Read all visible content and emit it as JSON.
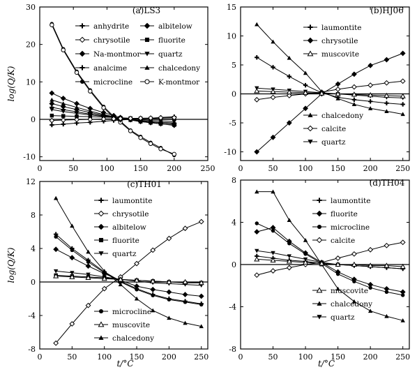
{
  "chart_data": [
    {
      "type": "line",
      "title": "(a)LS3",
      "xlabel": "",
      "ylabel": "log(Q/K)",
      "xlim": [
        0,
        250
      ],
      "ylim": [
        -11,
        30
      ],
      "xticks": [
        0,
        50,
        100,
        150,
        200,
        250
      ],
      "yticks": [
        -10,
        0,
        10,
        20,
        30
      ],
      "hline_y": 0,
      "legend": {
        "position": "top-right",
        "entries": [
          {
            "label": "anhydrite",
            "marker": "plus"
          },
          {
            "label": "albitelow",
            "marker": "diamond-filled"
          },
          {
            "label": "chrysotile",
            "marker": "diamond-open"
          },
          {
            "label": "fluorite",
            "marker": "square-filled"
          },
          {
            "label": "Na-montmor",
            "marker": "diamond-filled"
          },
          {
            "label": "quartz",
            "marker": "triangle-down"
          },
          {
            "label": "analcime",
            "marker": "plus"
          },
          {
            "label": "chalcedony",
            "marker": "triangle-up-filled"
          },
          {
            "label": "microcline",
            "marker": "circle-filled"
          },
          {
            "label": "K-montmor",
            "marker": "circle-open"
          }
        ]
      },
      "series": [
        {
          "x": [
            18,
            35,
            55,
            75,
            95,
            110,
            120,
            135,
            150,
            165,
            180,
            200
          ],
          "y": [
            25.5,
            18.8,
            12.8,
            7.8,
            3.4,
            0.8,
            -0.5,
            -2.9,
            -4.6,
            -6.2,
            -7.6,
            -9.6
          ],
          "marker": "circle-filled"
        },
        {
          "x": [
            18,
            35,
            55,
            75,
            95,
            110,
            120,
            135,
            150,
            165,
            180,
            200
          ],
          "y": [
            25.2,
            18.5,
            12.5,
            7.5,
            3.1,
            0.5,
            -0.8,
            -3.1,
            -4.9,
            -6.5,
            -7.9,
            -9.3
          ],
          "marker": "circle-open"
        },
        {
          "x": [
            18,
            35,
            55,
            75,
            95,
            110,
            120,
            135,
            150,
            165,
            180,
            200
          ],
          "y": [
            7.0,
            5.6,
            4.2,
            2.9,
            1.8,
            1.0,
            0.5,
            -0.1,
            -0.6,
            -0.9,
            -1.2,
            -1.6
          ],
          "marker": "diamond-filled"
        },
        {
          "x": [
            18,
            35,
            55,
            75,
            95,
            110,
            120,
            135,
            150,
            165,
            180,
            200
          ],
          "y": [
            5.2,
            4.2,
            3.2,
            2.2,
            1.3,
            0.7,
            0.3,
            -0.2,
            -0.6,
            -0.9,
            -1.2,
            -1.5
          ],
          "marker": "triangle-up-filled"
        },
        {
          "x": [
            18,
            35,
            55,
            75,
            95,
            110,
            120,
            135,
            150,
            165,
            180,
            200
          ],
          "y": [
            4.2,
            3.4,
            2.6,
            1.8,
            1.1,
            0.6,
            0.3,
            -0.1,
            -0.4,
            -0.7,
            -0.9,
            -1.2
          ],
          "marker": "diamond-filled"
        },
        {
          "x": [
            18,
            35,
            55,
            75,
            95,
            110,
            120,
            135,
            150,
            165,
            180,
            200
          ],
          "y": [
            3.2,
            2.6,
            2.0,
            1.4,
            0.9,
            0.5,
            0.2,
            -0.1,
            -0.3,
            -0.6,
            -0.8,
            -1.0
          ],
          "marker": "plus"
        },
        {
          "x": [
            18,
            35,
            55,
            75,
            95,
            110,
            120,
            135,
            150,
            165,
            180,
            200
          ],
          "y": [
            2.6,
            2.1,
            1.6,
            1.2,
            0.8,
            0.5,
            0.3,
            0.1,
            -0.1,
            -0.3,
            -0.4,
            -0.6
          ],
          "marker": "triangle-down"
        },
        {
          "x": [
            18,
            35,
            55,
            75,
            95,
            110,
            120,
            135,
            150,
            165,
            180,
            200
          ],
          "y": [
            1.0,
            0.9,
            0.8,
            0.7,
            0.6,
            0.5,
            0.4,
            0.3,
            0.25,
            0.2,
            0.15,
            0.1
          ],
          "marker": "square-filled"
        },
        {
          "x": [
            18,
            35,
            55,
            75,
            95,
            110,
            120,
            135,
            150,
            165,
            180,
            200
          ],
          "y": [
            -1.5,
            -1.3,
            -1.0,
            -0.8,
            -0.5,
            -0.3,
            -0.2,
            0.0,
            0.2,
            0.3,
            0.5,
            0.7
          ],
          "marker": "plus"
        },
        {
          "x": [
            18,
            35,
            55,
            75,
            95,
            110,
            120,
            135,
            150,
            165,
            180,
            200
          ],
          "y": [
            -0.3,
            -0.2,
            -0.1,
            0.0,
            0.1,
            0.15,
            0.2,
            0.25,
            0.3,
            0.35,
            0.4,
            0.45
          ],
          "marker": "diamond-open"
        }
      ]
    },
    {
      "type": "line",
      "title": "(b)HJ06",
      "xlabel": "",
      "ylabel": "",
      "xlim": [
        0,
        260
      ],
      "ylim": [
        -11.5,
        15
      ],
      "xticks": [
        0,
        50,
        100,
        150,
        200,
        250
      ],
      "yticks": [
        -10,
        -5,
        0,
        5,
        10,
        15
      ],
      "hline_y": 0,
      "legend": {
        "position": "right",
        "entries": [
          {
            "label": "laumontite",
            "marker": "plus"
          },
          {
            "label": "chrysotile",
            "marker": "diamond-filled"
          },
          {
            "label": "muscovite",
            "marker": "triangle-up-open"
          },
          {
            "label": "chalcedony",
            "marker": "triangle-up-filled"
          },
          {
            "label": "calcite",
            "marker": "diamond-open"
          },
          {
            "label": "quartz",
            "marker": "triangle-down"
          }
        ]
      },
      "series": [
        {
          "x": [
            25,
            50,
            75,
            100,
            125,
            150,
            175,
            200,
            225,
            250
          ],
          "y": [
            -10.0,
            -7.5,
            -5.0,
            -2.5,
            0.0,
            1.7,
            3.4,
            4.9,
            5.9,
            7.0
          ],
          "marker": "diamond-filled"
        },
        {
          "x": [
            25,
            50,
            75,
            100,
            125,
            150,
            175,
            200,
            225,
            250
          ],
          "y": [
            12.0,
            9.0,
            6.2,
            3.6,
            0.4,
            -0.8,
            -1.8,
            -2.5,
            -3.0,
            -3.5
          ],
          "marker": "triangle-up-filled"
        },
        {
          "x": [
            25,
            50,
            75,
            100,
            125,
            150,
            175,
            200,
            225,
            250
          ],
          "y": [
            6.3,
            4.6,
            3.0,
            1.5,
            0.2,
            -0.6,
            -1.0,
            -1.3,
            -1.6,
            -1.8
          ],
          "marker": "plus"
        },
        {
          "x": [
            25,
            50,
            75,
            100,
            125,
            150,
            175,
            200,
            225,
            250
          ],
          "y": [
            -1.0,
            -0.6,
            -0.3,
            0.0,
            0.3,
            0.8,
            1.2,
            1.5,
            1.9,
            2.2
          ],
          "marker": "diamond-open"
        },
        {
          "x": [
            25,
            50,
            75,
            100,
            125,
            150,
            175,
            200,
            225,
            250
          ],
          "y": [
            1.0,
            0.8,
            0.6,
            0.4,
            0.2,
            0.0,
            -0.2,
            -0.4,
            -0.6,
            -0.7
          ],
          "marker": "triangle-down"
        },
        {
          "x": [
            25,
            50,
            75,
            100,
            125,
            150,
            175,
            200,
            225,
            250
          ],
          "y": [
            0.5,
            0.4,
            0.3,
            0.2,
            0.1,
            0.0,
            -0.1,
            -0.2,
            -0.3,
            -0.4
          ],
          "marker": "triangle-up-open"
        }
      ]
    },
    {
      "type": "line",
      "title": "(c)TH01",
      "xlabel": "t/°C",
      "ylabel": "log(Q/K)",
      "xlim": [
        0,
        260
      ],
      "ylim": [
        -8,
        12
      ],
      "xticks": [
        0,
        50,
        100,
        150,
        200,
        250
      ],
      "yticks": [
        -8,
        -4,
        0,
        4,
        8,
        12
      ],
      "hline_y": 0,
      "legend": {
        "position": "right",
        "entries": [
          {
            "label": "laumontite",
            "marker": "plus"
          },
          {
            "label": "chrysotile",
            "marker": "diamond-open"
          },
          {
            "label": "albitelow",
            "marker": "diamond-filled"
          },
          {
            "label": "fluorite",
            "marker": "square-filled"
          },
          {
            "label": "quartz",
            "marker": "triangle-down"
          },
          {
            "label": "microcline",
            "marker": "circle-filled"
          },
          {
            "label": "muscovite",
            "marker": "triangle-up-open"
          },
          {
            "label": "chalcedony",
            "marker": "triangle-up-filled"
          }
        ]
      },
      "series": [
        {
          "x": [
            25,
            50,
            75,
            100,
            125,
            150,
            175,
            200,
            225,
            250
          ],
          "y": [
            -7.3,
            -5.0,
            -2.8,
            -0.8,
            0.6,
            2.2,
            3.8,
            5.2,
            6.4,
            7.2
          ],
          "marker": "diamond-open"
        },
        {
          "x": [
            25,
            50,
            75,
            100,
            125,
            150,
            175,
            200,
            225,
            250
          ],
          "y": [
            10.0,
            6.7,
            3.6,
            1.3,
            -0.3,
            -2.0,
            -3.4,
            -4.3,
            -4.9,
            -5.3
          ],
          "marker": "triangle-up-filled"
        },
        {
          "x": [
            25,
            50,
            75,
            100,
            125,
            150,
            175,
            200,
            225,
            250
          ],
          "y": [
            5.7,
            4.0,
            2.6,
            1.2,
            0.1,
            -0.8,
            -1.5,
            -2.0,
            -2.3,
            -2.6
          ],
          "marker": "plus"
        },
        {
          "x": [
            25,
            50,
            75,
            100,
            125,
            150,
            175,
            200,
            225,
            250
          ],
          "y": [
            5.4,
            3.8,
            2.4,
            1.1,
            0.0,
            -0.9,
            -1.6,
            -2.1,
            -2.4,
            -2.7
          ],
          "marker": "circle-filled"
        },
        {
          "x": [
            25,
            50,
            75,
            100,
            125,
            150,
            175,
            200,
            225,
            250
          ],
          "y": [
            3.9,
            2.9,
            1.9,
            1.0,
            0.2,
            -0.5,
            -0.9,
            -1.2,
            -1.5,
            -1.7
          ],
          "marker": "diamond-filled"
        },
        {
          "x": [
            25,
            50,
            75,
            100,
            125,
            150,
            175,
            200,
            225,
            250
          ],
          "y": [
            1.3,
            1.1,
            0.9,
            0.6,
            0.3,
            0.1,
            -0.1,
            -0.2,
            -0.3,
            -0.4
          ],
          "marker": "triangle-down"
        },
        {
          "x": [
            25,
            50,
            75,
            100,
            125,
            150,
            175,
            200,
            225,
            250
          ],
          "y": [
            0.8,
            0.7,
            0.6,
            0.5,
            0.3,
            0.2,
            0.1,
            0.0,
            -0.1,
            -0.1
          ],
          "marker": "square-filled"
        },
        {
          "x": [
            25,
            50,
            75,
            100,
            125,
            150,
            175,
            200,
            225,
            250
          ],
          "y": [
            0.7,
            0.6,
            0.5,
            0.4,
            0.3,
            0.2,
            0.1,
            0.0,
            0.0,
            -0.1
          ],
          "marker": "triangle-up-open"
        }
      ]
    },
    {
      "type": "line",
      "title": "(d)TH04",
      "xlabel": "t/°C",
      "ylabel": "",
      "xlim": [
        0,
        260
      ],
      "ylim": [
        -8,
        8
      ],
      "xticks": [
        0,
        50,
        100,
        150,
        200,
        250
      ],
      "yticks": [
        -8,
        -4,
        0,
        4,
        8
      ],
      "hline_y": 0,
      "legend": {
        "position": "right",
        "entries": [
          {
            "label": "laumontite",
            "marker": "plus"
          },
          {
            "label": "fluorite",
            "marker": "diamond-filled"
          },
          {
            "label": "microcline",
            "marker": "circle-filled"
          },
          {
            "label": "calcite",
            "marker": "diamond-open"
          },
          {
            "label": "muscovite",
            "marker": "triangle-up-open"
          },
          {
            "label": "chalcedony",
            "marker": "triangle-up-filled"
          },
          {
            "label": "quartz",
            "marker": "triangle-down"
          }
        ]
      },
      "series": [
        {
          "x": [
            25,
            50,
            75,
            100,
            125,
            150,
            175,
            200,
            225,
            250
          ],
          "y": [
            6.9,
            6.9,
            4.2,
            2.3,
            0.0,
            -2.3,
            -3.5,
            -4.4,
            -4.9,
            -5.3
          ],
          "marker": "triangle-up-filled"
        },
        {
          "x": [
            25,
            50,
            75,
            100,
            125,
            150,
            175,
            200,
            225,
            250
          ],
          "y": [
            3.9,
            3.2,
            2.0,
            1.0,
            0.1,
            -0.9,
            -1.6,
            -2.2,
            -2.6,
            -2.9
          ],
          "marker": "circle-filled"
        },
        {
          "x": [
            25,
            50,
            75,
            100,
            125,
            150,
            175,
            200,
            225,
            250
          ],
          "y": [
            3.1,
            3.5,
            2.2,
            1.1,
            0.2,
            -0.7,
            -1.4,
            -1.9,
            -2.3,
            -2.6
          ],
          "marker": "diamond-filled"
        },
        {
          "x": [
            25,
            50,
            75,
            100,
            125,
            150,
            175,
            200,
            225,
            250
          ],
          "y": [
            -1.0,
            -0.6,
            -0.3,
            0.0,
            0.2,
            0.6,
            1.0,
            1.4,
            1.8,
            2.1
          ],
          "marker": "diamond-open"
        },
        {
          "x": [
            25,
            50,
            75,
            100,
            125,
            150,
            175,
            200,
            225,
            250
          ],
          "y": [
            1.3,
            1.1,
            0.8,
            0.5,
            0.2,
            0.0,
            -0.1,
            -0.2,
            -0.3,
            -0.4
          ],
          "marker": "triangle-down"
        },
        {
          "x": [
            25,
            50,
            75,
            100,
            125,
            150,
            175,
            200,
            225,
            250
          ],
          "y": [
            0.8,
            0.6,
            0.4,
            0.3,
            0.1,
            0.0,
            -0.1,
            -0.2,
            -0.3,
            -0.4
          ],
          "marker": "plus"
        },
        {
          "x": [
            25,
            50,
            75,
            100,
            125,
            150,
            175,
            200,
            225,
            250
          ],
          "y": [
            0.5,
            0.4,
            0.3,
            0.2,
            0.1,
            0.0,
            0.0,
            -0.1,
            -0.1,
            -0.2
          ],
          "marker": "triangle-up-open"
        }
      ]
    }
  ]
}
